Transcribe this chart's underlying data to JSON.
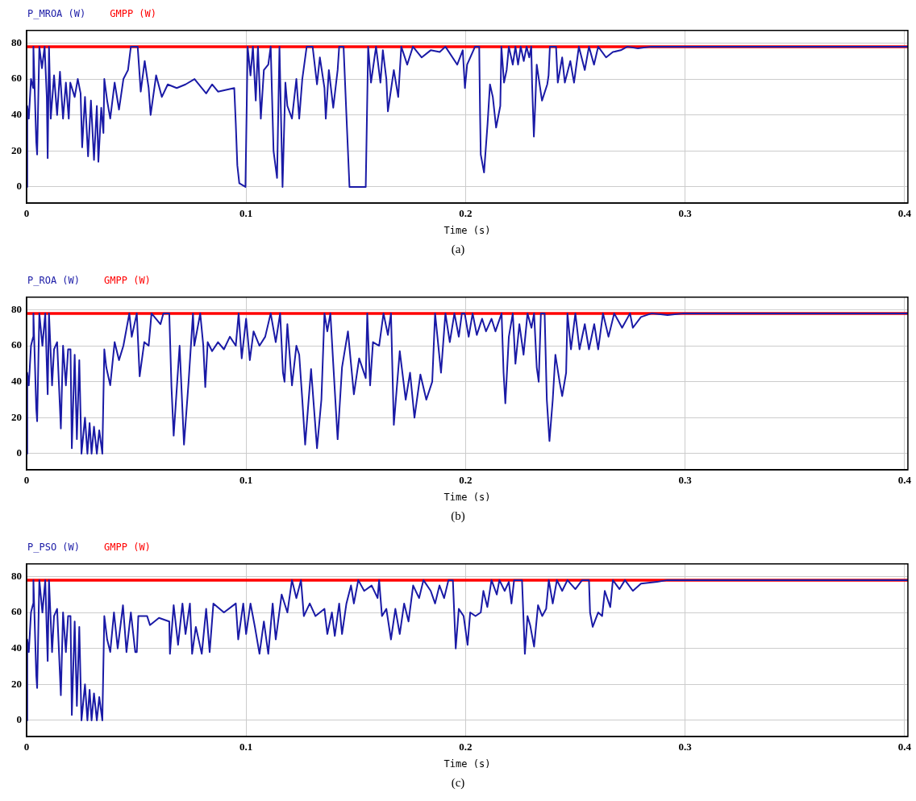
{
  "chart_data": [
    {
      "type": "line",
      "xlabel": "Time (s)",
      "xlim": [
        0,
        0.4015
      ],
      "xticks": [
        0,
        0.1,
        0.2,
        0.3,
        0.4
      ],
      "ylim": [
        -9,
        87
      ],
      "yticks": [
        0,
        20,
        40,
        60,
        80
      ],
      "grid": true,
      "legend": "top left",
      "annotations": [
        "(a)"
      ],
      "series": [
        {
          "name": "P_MROA (W)",
          "color": "#1a1aa6",
          "x": [
            0,
            0.0003,
            0.001,
            0.002,
            0.003,
            0.0031,
            0.0044,
            0.0048,
            0.0058,
            0.007,
            0.0082,
            0.0092,
            0.0096,
            0.0102,
            0.011,
            0.0125,
            0.0139,
            0.0152,
            0.0166,
            0.0179,
            0.0192,
            0.0199,
            0.0219,
            0.0233,
            0.0246,
            0.0253,
            0.0266,
            0.028,
            0.0293,
            0.0307,
            0.032,
            0.0327,
            0.034,
            0.035,
            0.0354,
            0.0367,
            0.0381,
            0.0401,
            0.0421,
            0.0441,
            0.0462,
            0.0475,
            0.0506,
            0.052,
            0.0538,
            0.0556,
            0.0565,
            0.059,
            0.0616,
            0.0643,
            0.0684,
            0.0724,
            0.0765,
            0.0818,
            0.0845,
            0.0872,
            0.0946,
            0.0953,
            0.096,
            0.0969,
            0.0997,
            0.1007,
            0.102,
            0.1031,
            0.1044,
            0.1054,
            0.1067,
            0.1081,
            0.1101,
            0.1112,
            0.1125,
            0.1141,
            0.1152,
            0.1166,
            0.1179,
            0.1188,
            0.1209,
            0.1229,
            0.1242,
            0.1256,
            0.1276,
            0.1303,
            0.1323,
            0.1336,
            0.1357,
            0.1363,
            0.1377,
            0.1397,
            0.1417,
            0.1424,
            0.1444,
            0.1457,
            0.1471,
            0.1545,
            0.1556,
            0.1569,
            0.1592,
            0.1612,
            0.1623,
            0.1639,
            0.1646,
            0.1673,
            0.1693,
            0.1707,
            0.1734,
            0.176,
            0.18,
            0.1841,
            0.1882,
            0.1908,
            0.1962,
            0.1987,
            0.1997,
            0.2007,
            0.2043,
            0.2062,
            0.2066,
            0.2069,
            0.2084,
            0.21,
            0.2111,
            0.2124,
            0.2139,
            0.2158,
            0.2163,
            0.2175,
            0.2187,
            0.2197,
            0.2215,
            0.2227,
            0.2239,
            0.2251,
            0.2265,
            0.2278,
            0.229,
            0.2299,
            0.2303,
            0.2311,
            0.2317,
            0.2324,
            0.2348,
            0.2372,
            0.2378,
            0.2384,
            0.2412,
            0.242,
            0.243,
            0.244,
            0.2452,
            0.2477,
            0.2494,
            0.2516,
            0.2543,
            0.2562,
            0.2585,
            0.2604,
            0.264,
            0.2671,
            0.2707,
            0.2737,
            0.2785,
            0.2846,
            0.2907,
            0.4015
          ],
          "values": [
            0,
            45,
            38,
            60,
            55,
            78,
            25,
            18,
            78,
            66,
            78,
            50,
            16,
            78,
            38,
            62,
            40,
            64,
            38,
            58,
            38,
            58,
            50,
            60,
            52,
            22,
            50,
            17,
            48,
            15,
            45,
            14,
            44,
            30,
            60,
            48,
            38,
            58,
            43,
            60,
            65,
            78,
            78,
            53,
            70,
            55,
            40,
            62,
            50,
            57,
            55,
            57,
            60,
            52,
            57,
            53,
            55,
            35,
            12,
            2,
            0,
            78,
            62,
            78,
            48,
            78,
            38,
            65,
            68,
            78,
            20,
            5,
            78,
            0,
            58,
            45,
            38,
            60,
            38,
            60,
            78,
            78,
            57,
            72,
            55,
            38,
            65,
            44,
            65,
            78,
            78,
            40,
            0,
            0,
            78,
            58,
            78,
            58,
            76,
            60,
            42,
            65,
            50,
            78,
            68,
            78,
            72,
            76,
            75,
            78,
            68,
            76,
            55,
            68,
            78,
            78,
            40,
            18,
            8,
            35,
            57,
            50,
            33,
            45,
            78,
            58,
            65,
            78,
            68,
            78,
            68,
            78,
            70,
            78,
            72,
            78,
            57,
            28,
            45,
            68,
            48,
            57,
            62,
            78,
            78,
            58,
            65,
            72,
            58,
            70,
            58,
            78,
            65,
            78,
            68,
            78,
            72,
            75,
            76,
            78,
            77,
            78,
            78,
            78
          ]
        },
        {
          "name": "GMPP (W)",
          "color": "#ff0000",
          "x": [
            0,
            0.4015
          ],
          "values": [
            78,
            78
          ]
        }
      ]
    },
    {
      "type": "line",
      "xlabel": "Time (s)",
      "xlim": [
        0,
        0.4015
      ],
      "xticks": [
        0,
        0.1,
        0.2,
        0.3,
        0.4
      ],
      "ylim": [
        -9,
        87
      ],
      "yticks": [
        0,
        20,
        40,
        60,
        80
      ],
      "grid": true,
      "legend": "top left",
      "annotations": [
        "(b)"
      ],
      "series": [
        {
          "name": "P_ROA (W)",
          "color": "#1a1aa6",
          "x": [
            0,
            0.0003,
            0.001,
            0.002,
            0.003,
            0.0031,
            0.0044,
            0.0048,
            0.0058,
            0.0072,
            0.0085,
            0.0096,
            0.0102,
            0.0116,
            0.0125,
            0.0139,
            0.0156,
            0.0166,
            0.0179,
            0.0189,
            0.02,
            0.0206,
            0.0219,
            0.0229,
            0.024,
            0.025,
            0.0266,
            0.0277,
            0.0287,
            0.0296,
            0.0307,
            0.032,
            0.0331,
            0.0345,
            0.0354,
            0.0363,
            0.0381,
            0.0401,
            0.0421,
            0.0441,
            0.0468,
            0.0479,
            0.0502,
            0.0515,
            0.0536,
            0.0556,
            0.0569,
            0.061,
            0.0623,
            0.065,
            0.066,
            0.067,
            0.0697,
            0.0717,
            0.0738,
            0.0758,
            0.0764,
            0.0791,
            0.0805,
            0.0814,
            0.0825,
            0.0845,
            0.0872,
            0.0899,
            0.0926,
            0.0953,
            0.0966,
            0.098,
            0.1,
            0.1017,
            0.1034,
            0.1061,
            0.1087,
            0.1112,
            0.1135,
            0.1155,
            0.1168,
            0.1175,
            0.1188,
            0.1209,
            0.1229,
            0.1242,
            0.1256,
            0.1269,
            0.1296,
            0.1323,
            0.1343,
            0.1357,
            0.137,
            0.1384,
            0.1397,
            0.1417,
            0.1437,
            0.1464,
            0.1491,
            0.1515,
            0.1545,
            0.1552,
            0.1565,
            0.1578,
            0.1606,
            0.1626,
            0.1646,
            0.166,
            0.1673,
            0.17,
            0.1727,
            0.1747,
            0.1767,
            0.1794,
            0.1821,
            0.1848,
            0.1861,
            0.1888,
            0.1908,
            0.1928,
            0.1949,
            0.1969,
            0.1983,
            0.1996,
            0.2014,
            0.2032,
            0.2051,
            0.2075,
            0.2093,
            0.2118,
            0.2136,
            0.2164,
            0.2173,
            0.2181,
            0.2197,
            0.2215,
            0.2227,
            0.2245,
            0.2264,
            0.2282,
            0.23,
            0.2312,
            0.2324,
            0.2333,
            0.2343,
            0.236,
            0.237,
            0.2382,
            0.2397,
            0.2409,
            0.2428,
            0.244,
            0.2458,
            0.2464,
            0.248,
            0.25,
            0.2519,
            0.2543,
            0.2562,
            0.2586,
            0.2604,
            0.2626,
            0.2651,
            0.2677,
            0.2713,
            0.2749,
            0.2762,
            0.2799,
            0.2848,
            0.292,
            0.2994,
            0.4015
          ],
          "values": [
            0,
            45,
            38,
            60,
            65,
            78,
            25,
            18,
            78,
            60,
            78,
            33,
            78,
            38,
            58,
            62,
            14,
            60,
            38,
            58,
            58,
            3,
            55,
            8,
            52,
            0,
            20,
            0,
            17,
            0,
            15,
            0,
            13,
            0,
            58,
            48,
            38,
            62,
            52,
            60,
            78,
            65,
            78,
            43,
            62,
            60,
            78,
            72,
            78,
            78,
            37,
            10,
            60,
            5,
            40,
            78,
            60,
            78,
            60,
            37,
            62,
            57,
            62,
            58,
            65,
            60,
            78,
            53,
            75,
            52,
            68,
            60,
            65,
            78,
            62,
            78,
            45,
            40,
            72,
            38,
            60,
            55,
            30,
            5,
            47,
            3,
            30,
            78,
            68,
            78,
            50,
            8,
            48,
            68,
            33,
            53,
            42,
            78,
            38,
            62,
            60,
            78,
            66,
            78,
            16,
            57,
            30,
            45,
            20,
            44,
            30,
            40,
            78,
            45,
            78,
            62,
            78,
            65,
            78,
            78,
            65,
            78,
            66,
            75,
            68,
            75,
            68,
            78,
            45,
            28,
            65,
            78,
            50,
            72,
            55,
            78,
            70,
            78,
            48,
            40,
            78,
            78,
            30,
            7,
            30,
            55,
            40,
            32,
            45,
            78,
            58,
            78,
            58,
            72,
            58,
            72,
            58,
            78,
            65,
            78,
            70,
            78,
            70,
            76,
            78,
            77,
            78,
            78
          ]
        },
        {
          "name": "GMPP (W)",
          "color": "#ff0000",
          "x": [
            0,
            0.4015
          ],
          "values": [
            78,
            78
          ]
        }
      ]
    },
    {
      "type": "line",
      "xlabel": "Time (s)",
      "xlim": [
        0,
        0.4015
      ],
      "xticks": [
        0,
        0.1,
        0.2,
        0.3,
        0.4
      ],
      "ylim": [
        -9,
        87
      ],
      "yticks": [
        0,
        20,
        40,
        60,
        80
      ],
      "grid": true,
      "legend": "top left",
      "annotations": [
        "(c)"
      ],
      "series": [
        {
          "name": "P_PSO (W)",
          "color": "#1a1aa6",
          "x": [
            0,
            0.0003,
            0.001,
            0.002,
            0.003,
            0.0031,
            0.0044,
            0.0048,
            0.0058,
            0.0072,
            0.0085,
            0.0096,
            0.0102,
            0.0116,
            0.0125,
            0.0139,
            0.0156,
            0.0166,
            0.0179,
            0.0189,
            0.02,
            0.0206,
            0.0219,
            0.0229,
            0.024,
            0.025,
            0.0266,
            0.0277,
            0.0287,
            0.0296,
            0.0307,
            0.032,
            0.0331,
            0.0345,
            0.0354,
            0.0367,
            0.0381,
            0.0398,
            0.0415,
            0.0439,
            0.0455,
            0.0475,
            0.0495,
            0.0502,
            0.0509,
            0.0549,
            0.0562,
            0.0603,
            0.065,
            0.0653,
            0.067,
            0.069,
            0.071,
            0.0724,
            0.0744,
            0.0754,
            0.0771,
            0.0798,
            0.0818,
            0.0834,
            0.0851,
            0.0899,
            0.0953,
            0.0964,
            0.0987,
            0.1,
            0.102,
            0.104,
            0.1061,
            0.1081,
            0.1101,
            0.1121,
            0.1135,
            0.1162,
            0.1188,
            0.1209,
            0.1229,
            0.125,
            0.1263,
            0.129,
            0.1316,
            0.1357,
            0.137,
            0.1391,
            0.1404,
            0.1424,
            0.1437,
            0.1457,
            0.1478,
            0.1491,
            0.1511,
            0.1538,
            0.1572,
            0.1599,
            0.1606,
            0.1619,
            0.1639,
            0.166,
            0.168,
            0.17,
            0.172,
            0.174,
            0.1761,
            0.1788,
            0.1808,
            0.1841,
            0.1861,
            0.1881,
            0.1902,
            0.1922,
            0.1942,
            0.1955,
            0.1969,
            0.1991,
            0.2009,
            0.2021,
            0.2045,
            0.2069,
            0.2081,
            0.2099,
            0.2118,
            0.2142,
            0.2154,
            0.2178,
            0.2197,
            0.2209,
            0.2221,
            0.2257,
            0.227,
            0.2282,
            0.2294,
            0.2312,
            0.233,
            0.2349,
            0.2367,
            0.2379,
            0.2397,
            0.2416,
            0.244,
            0.2464,
            0.25,
            0.2531,
            0.2562,
            0.2567,
            0.2579,
            0.2604,
            0.2622,
            0.2634,
            0.2659,
            0.2671,
            0.2701,
            0.2726,
            0.2762,
            0.2799,
            0.2872,
            0.292,
            0.3018,
            0.4015
          ],
          "values": [
            0,
            45,
            38,
            60,
            65,
            78,
            25,
            18,
            78,
            60,
            78,
            33,
            78,
            38,
            58,
            62,
            14,
            60,
            38,
            58,
            58,
            3,
            55,
            8,
            52,
            0,
            20,
            0,
            17,
            0,
            15,
            0,
            13,
            0,
            58,
            45,
            38,
            60,
            40,
            64,
            38,
            60,
            38,
            38,
            58,
            58,
            53,
            57,
            55,
            37,
            64,
            42,
            65,
            48,
            65,
            37,
            52,
            37,
            62,
            38,
            65,
            60,
            65,
            45,
            65,
            48,
            65,
            52,
            37,
            55,
            37,
            65,
            45,
            70,
            60,
            78,
            68,
            78,
            58,
            65,
            58,
            62,
            48,
            60,
            47,
            65,
            48,
            65,
            75,
            65,
            78,
            72,
            75,
            68,
            78,
            58,
            62,
            45,
            62,
            48,
            65,
            55,
            75,
            68,
            78,
            72,
            65,
            75,
            68,
            78,
            78,
            40,
            62,
            58,
            42,
            60,
            58,
            60,
            72,
            63,
            78,
            70,
            78,
            72,
            77,
            65,
            78,
            78,
            37,
            58,
            53,
            41,
            64,
            58,
            62,
            78,
            65,
            78,
            72,
            78,
            73,
            78,
            78,
            60,
            52,
            60,
            58,
            72,
            63,
            78,
            73,
            78,
            72,
            76,
            77,
            78,
            78,
            78
          ]
        },
        {
          "name": "GMPP (W)",
          "color": "#ff0000",
          "x": [
            0,
            0.4015
          ],
          "values": [
            78,
            78
          ]
        }
      ]
    }
  ]
}
